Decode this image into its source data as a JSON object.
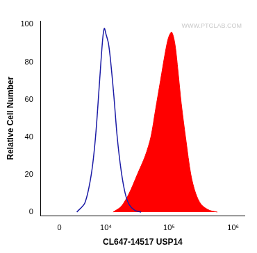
{
  "chart_data": {
    "type": "line",
    "x_label": "CL647-14517 USP14",
    "y_label": "Relative Cell Number",
    "annotations": [
      {
        "text": "WWW.PTGLAB.COM"
      }
    ],
    "log": "x",
    "grid": false,
    "xlim": [
      -2800,
      1500000
    ],
    "xticks": [
      0,
      {
        "value": 10000,
        "label": "10⁴"
      },
      {
        "value": 100000,
        "label": "10⁵"
      },
      {
        "value": 1000000,
        "label": "10⁶"
      }
    ],
    "ylim": [
      -2,
      102
    ],
    "yticks": [
      0,
      20,
      40,
      60,
      80,
      100
    ],
    "series": [
      {
        "type": "line",
        "color": "#1c1ca6",
        "x": [
          2600,
          4100,
          5500,
          6600,
          7800,
          8800,
          9400,
          10000,
          11000,
          12000,
          13500,
          15300,
          17700,
          20500,
          23700,
          29000,
          36600
        ],
        "values": [
          0,
          5,
          20,
          40,
          70,
          92,
          98,
          95,
          90,
          80,
          62,
          40,
          22,
          10,
          4,
          1,
          0
        ]
      },
      {
        "type": "area",
        "color": "#ff0000",
        "x": [
          13150,
          17700,
          23700,
          31800,
          42400,
          51900,
          61700,
          73300,
          87100,
          97800,
          109600,
          123000,
          138000,
          154900,
          184000,
          218800,
          260000,
          318000,
          424000,
          566000
        ],
        "values": [
          0,
          3,
          10,
          20,
          30,
          40,
          55,
          70,
          85,
          93,
          96,
          90,
          75,
          58,
          38,
          20,
          10,
          4,
          1,
          0
        ]
      }
    ]
  }
}
